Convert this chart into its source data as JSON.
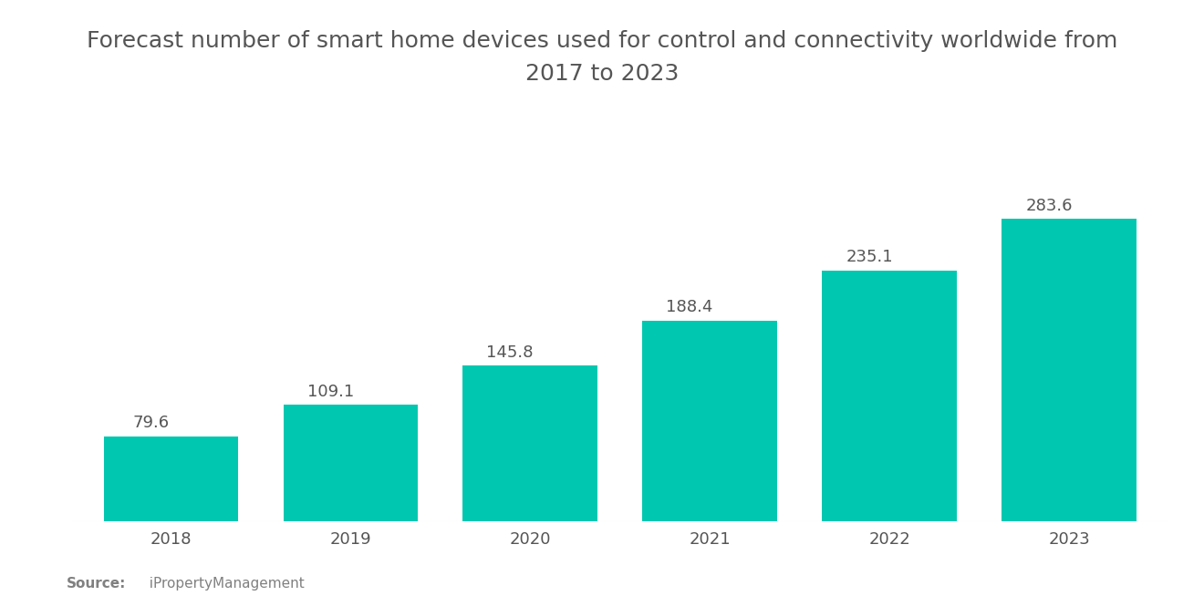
{
  "title": "Forecast number of smart home devices used for control and connectivity worldwide from\n2017 to 2023",
  "categories": [
    "2018",
    "2019",
    "2020",
    "2021",
    "2022",
    "2023"
  ],
  "values": [
    79.6,
    109.1,
    145.8,
    188.4,
    235.1,
    283.6
  ],
  "bar_color": "#00C8B0",
  "bar_width": 0.75,
  "label_color": "#555555",
  "title_color": "#555555",
  "background_color": "#ffffff",
  "source_bold": "Source:",
  "source_text": "  iPropertyManagement",
  "source_color": "#808080",
  "ylim": [
    0,
    330
  ],
  "value_label_fontsize": 13,
  "axis_label_fontsize": 13,
  "title_fontsize": 18
}
